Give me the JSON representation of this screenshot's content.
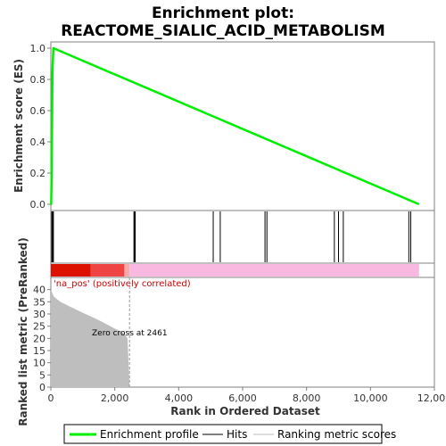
{
  "chart_data": {
    "type": "line",
    "title_line1": "Enrichment plot:",
    "title_line2": "REACTOME_SIALIC_ACID_METABOLISM",
    "xlabel": "Rank in Ordered Dataset",
    "ylabel_top": "Enrichment score (ES)",
    "ylabel_bottom": "Ranked list metric (PreRanked)",
    "xlim": [
      0,
      12000
    ],
    "ylim_es": [
      -0.04,
      1.04
    ],
    "ylim_metric": [
      0,
      45
    ],
    "x_ticks": [
      "0",
      "2,000",
      "4,000",
      "6,000",
      "8,000",
      "10,000",
      "12,000"
    ],
    "x_tick_values": [
      0,
      2000,
      4000,
      6000,
      8000,
      10000,
      12000
    ],
    "es_ticks": [
      "0.0",
      "0.2",
      "0.4",
      "0.6",
      "0.8",
      "1.0"
    ],
    "es_tick_values": [
      0,
      0.2,
      0.4,
      0.6,
      0.8,
      1.0
    ],
    "metric_ticks": [
      "0",
      "5",
      "10",
      "15",
      "20",
      "25",
      "30",
      "35",
      "40"
    ],
    "metric_tick_values": [
      0,
      5,
      10,
      15,
      20,
      25,
      30,
      35,
      40
    ],
    "enrichment_profile": {
      "x": [
        0,
        10,
        30,
        50,
        80,
        11520
      ],
      "y": [
        0,
        0,
        0.25,
        0.85,
        1.0,
        0.0
      ],
      "color": "#00ee00"
    },
    "hits": [
      30,
      55,
      80,
      2600,
      2620,
      2640,
      5080,
      5300,
      6700,
      6760,
      8870,
      9000,
      9150,
      11200,
      11260
    ],
    "ranked_metric": {
      "x": [
        0,
        100,
        300,
        600,
        1000,
        1500,
        2000,
        2300,
        2400,
        2461
      ],
      "y": [
        40,
        37,
        35,
        33,
        30.5,
        27.5,
        24,
        22,
        20,
        0
      ],
      "color": "#bebebe"
    },
    "color_bar": [
      {
        "from": 0,
        "to": 1250,
        "color": "#dd1100"
      },
      {
        "from": 1250,
        "to": 2300,
        "color": "#ee4444"
      },
      {
        "from": 2300,
        "to": 2461,
        "color": "#f8aaaa"
      },
      {
        "from": 2461,
        "to": 11520,
        "color": "#f8b8e0"
      }
    ],
    "zero_cross_value": 2461,
    "annotation_pos": "'na_pos' (positively correlated)",
    "annotation_zero": "Zero cross at 2461",
    "legend": [
      {
        "label": "Enrichment profile",
        "color": "#00ee00",
        "style": "thick"
      },
      {
        "label": "Hits",
        "color": "#000000",
        "style": "thin"
      },
      {
        "label": "Ranking metric scores",
        "color": "#bebebe",
        "style": "thin"
      }
    ]
  }
}
